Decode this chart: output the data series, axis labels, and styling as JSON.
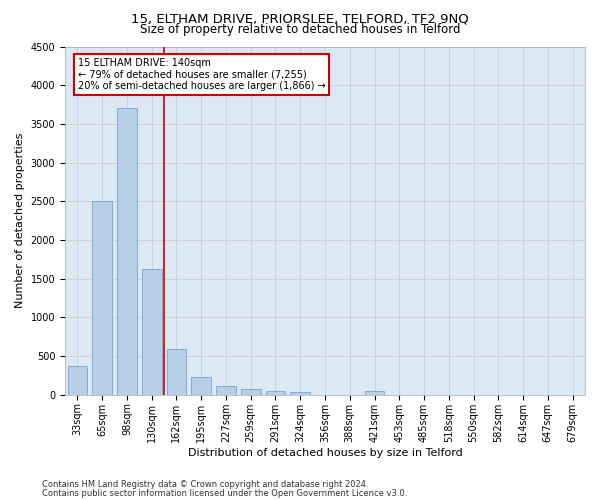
{
  "title_line1": "15, ELTHAM DRIVE, PRIORSLEE, TELFORD, TF2 9NQ",
  "title_line2": "Size of property relative to detached houses in Telford",
  "xlabel": "Distribution of detached houses by size in Telford",
  "ylabel": "Number of detached properties",
  "categories": [
    "33sqm",
    "65sqm",
    "98sqm",
    "130sqm",
    "162sqm",
    "195sqm",
    "227sqm",
    "259sqm",
    "291sqm",
    "324sqm",
    "356sqm",
    "388sqm",
    "421sqm",
    "453sqm",
    "485sqm",
    "518sqm",
    "550sqm",
    "582sqm",
    "614sqm",
    "647sqm",
    "679sqm"
  ],
  "values": [
    370,
    2500,
    3700,
    1620,
    590,
    230,
    110,
    70,
    50,
    40,
    0,
    0,
    55,
    0,
    0,
    0,
    0,
    0,
    0,
    0,
    0
  ],
  "bar_color": "#b8cfe8",
  "bar_edge_color": "#6699cc",
  "red_line_x": 3.5,
  "annotation_text": "15 ELTHAM DRIVE: 140sqm\n← 79% of detached houses are smaller (7,255)\n20% of semi-detached houses are larger (1,866) →",
  "annotation_box_color": "#ffffff",
  "annotation_box_edge": "#cc0000",
  "ylim": [
    0,
    4500
  ],
  "yticks": [
    0,
    500,
    1000,
    1500,
    2000,
    2500,
    3000,
    3500,
    4000,
    4500
  ],
  "grid_color": "#cccccc",
  "bg_color": "#dde8f5",
  "footer_line1": "Contains HM Land Registry data © Crown copyright and database right 2024.",
  "footer_line2": "Contains public sector information licensed under the Open Government Licence v3.0.",
  "red_line_color": "#cc0000",
  "title_fontsize": 9.5,
  "subtitle_fontsize": 8.5,
  "axis_label_fontsize": 8,
  "tick_fontsize": 7,
  "annotation_fontsize": 7,
  "footer_fontsize": 6
}
